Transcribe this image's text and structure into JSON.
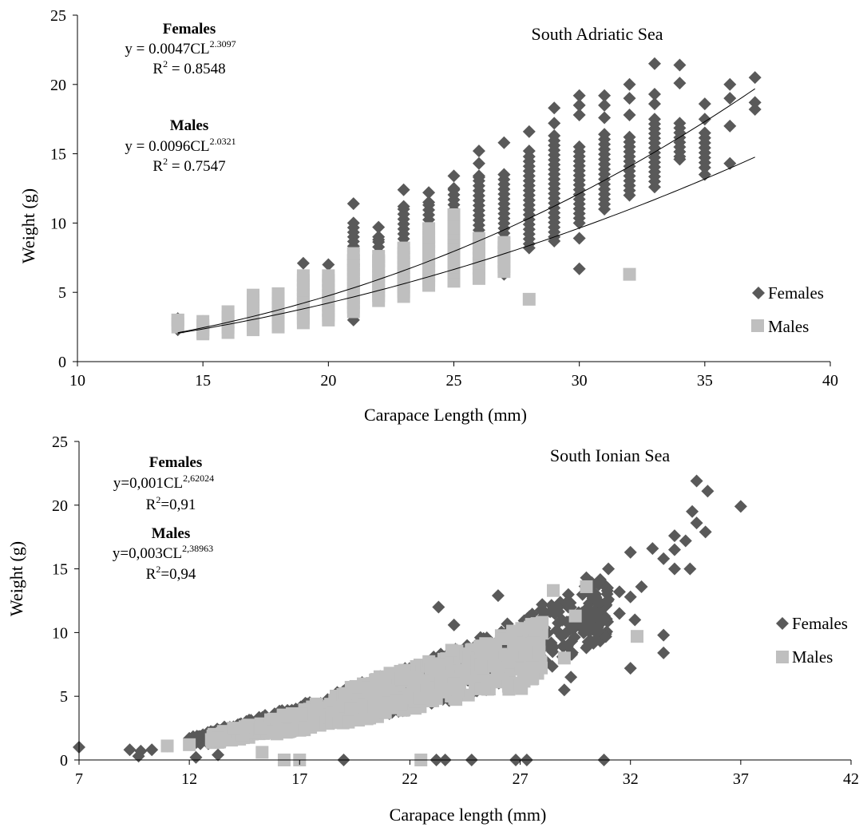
{
  "colors": {
    "females": "#595959",
    "males": "#bfbfbf",
    "axis": "#000000"
  },
  "chart_data": [
    {
      "type": "scatter",
      "title": "South Adriatic Sea",
      "xlabel": "Carapace Length (mm)",
      "ylabel": "Weight (g)",
      "xlim": [
        10,
        40
      ],
      "ylim": [
        0,
        25
      ],
      "xticks": [
        "10",
        "15",
        "20",
        "25",
        "30",
        "35",
        "40"
      ],
      "yticks": [
        "0",
        "5",
        "10",
        "15",
        "20",
        "25"
      ],
      "legend": [
        "Females",
        "Males"
      ],
      "legend_position": "right",
      "equations": {
        "females": {
          "label": "Females",
          "base": "y = 0.0047CL",
          "exp": "2.3097",
          "r2_label": "R",
          "r2_value": " = 0.8548"
        },
        "males": {
          "label": "Males",
          "base": "y = 0.0096CL",
          "exp": "2.0321",
          "r2_label": "R",
          "r2_value": " = 0.7547"
        }
      },
      "fits": [
        {
          "name": "Females",
          "a": 0.0047,
          "b": 2.3097,
          "x_range": [
            14,
            37
          ]
        },
        {
          "name": "Males",
          "a": 0.0096,
          "b": 2.0321,
          "x_range": [
            14,
            37
          ]
        }
      ],
      "series": [
        {
          "name": "Females",
          "marker": "diamond",
          "points": [
            [
              14,
              2.3
            ],
            [
              14,
              3.1
            ],
            [
              15,
              2.9
            ],
            [
              19,
              7.1
            ],
            [
              20,
              7.0
            ],
            [
              21,
              11.4
            ],
            [
              21,
              3.0
            ],
            [
              22,
              9.7
            ],
            [
              22,
              8.8
            ],
            [
              23,
              12.4
            ],
            [
              23,
              11.2
            ],
            [
              24,
              12.2
            ],
            [
              24,
              11.5
            ],
            [
              25,
              13.4
            ],
            [
              25,
              12.5
            ],
            [
              26,
              15.2
            ],
            [
              26,
              14.3
            ],
            [
              26,
              13.3
            ],
            [
              27,
              15.8
            ],
            [
              27,
              13.5
            ],
            [
              27,
              6.3
            ],
            [
              28,
              16.6
            ],
            [
              28,
              15.2
            ],
            [
              28,
              8.2
            ],
            [
              29,
              18.3
            ],
            [
              29,
              17.2
            ],
            [
              29,
              8.7
            ],
            [
              30,
              19.2
            ],
            [
              30,
              18.5
            ],
            [
              30,
              17.8
            ],
            [
              30,
              8.9
            ],
            [
              30,
              6.7
            ],
            [
              31,
              19.2
            ],
            [
              31,
              18.5
            ],
            [
              31,
              17.6
            ],
            [
              32,
              20.0
            ],
            [
              32,
              19.0
            ],
            [
              32,
              17.8
            ],
            [
              33,
              21.5
            ],
            [
              33,
              19.3
            ],
            [
              33,
              18.6
            ],
            [
              33,
              12.6
            ],
            [
              34,
              21.4
            ],
            [
              34,
              20.1
            ],
            [
              34,
              14.6
            ],
            [
              35,
              18.6
            ],
            [
              35,
              17.5
            ],
            [
              35,
              13.5
            ],
            [
              36,
              20.0
            ],
            [
              36,
              19.0
            ],
            [
              36,
              17.0
            ],
            [
              36,
              14.3
            ],
            [
              37,
              20.5
            ],
            [
              37,
              18.7
            ],
            [
              37,
              18.2
            ]
          ],
          "columns": [
            [
              21,
              7.0,
              10.0
            ],
            [
              22,
              5.0,
              9.0
            ],
            [
              23,
              6.0,
              11.0
            ],
            [
              24,
              6.0,
              11.3
            ],
            [
              25,
              7.0,
              12.4
            ],
            [
              26,
              7.0,
              13.4
            ],
            [
              27,
              7.5,
              13.5
            ],
            [
              28,
              8.5,
              14.8
            ],
            [
              29,
              9.0,
              16.3
            ],
            [
              30,
              10.0,
              15.5
            ],
            [
              31,
              11.0,
              16.4
            ],
            [
              32,
              12.0,
              16.2
            ],
            [
              33,
              13.0,
              17.5
            ],
            [
              34,
              14.8,
              17.2
            ],
            [
              35,
              14.0,
              16.5
            ]
          ]
        },
        {
          "name": "Males",
          "marker": "square",
          "points": [
            [
              14,
              3.0
            ],
            [
              15,
              2.1
            ],
            [
              21,
              7.8
            ],
            [
              22,
              7.3
            ],
            [
              24,
              9.6
            ],
            [
              25,
              10.6
            ],
            [
              28,
              4.5
            ],
            [
              32,
              6.3
            ]
          ],
          "columns": [
            [
              14,
              2.5,
              3.0
            ],
            [
              15,
              2.0,
              2.9
            ],
            [
              16,
              2.1,
              3.6
            ],
            [
              17,
              2.3,
              4.8
            ],
            [
              18,
              2.5,
              4.9
            ],
            [
              19,
              2.8,
              6.2
            ],
            [
              20,
              3.0,
              6.2
            ],
            [
              21,
              3.6,
              7.3
            ],
            [
              22,
              4.4,
              7.6
            ],
            [
              23,
              4.7,
              8.2
            ],
            [
              24,
              5.5,
              9.0
            ],
            [
              25,
              5.8,
              10.0
            ],
            [
              26,
              6.0,
              8.9
            ],
            [
              27,
              6.5,
              8.6
            ]
          ]
        }
      ]
    },
    {
      "type": "scatter",
      "title": "South Ionian Sea",
      "xlabel": "Carapace length (mm)",
      "ylabel": "Weight (g)",
      "xlim": [
        7,
        42
      ],
      "ylim": [
        0,
        25
      ],
      "xticks": [
        "7",
        "12",
        "17",
        "22",
        "27",
        "32",
        "37",
        "42"
      ],
      "yticks": [
        "0",
        "5",
        "10",
        "15",
        "20",
        "25"
      ],
      "legend": [
        "Females",
        "Males"
      ],
      "legend_position": "right",
      "equations": {
        "females": {
          "label": "Females",
          "base": "y=0,001CL",
          "exp": "2,62024",
          "r2_label": "R",
          "r2_value": "=0,91"
        },
        "males": {
          "label": "Males",
          "base": "y=0,003CL",
          "exp": "2,38963",
          "r2_label": "R",
          "r2_value": "=0,94"
        }
      },
      "series": [
        {
          "name": "Females",
          "marker": "diamond",
          "points": [
            [
              7,
              1.0
            ],
            [
              9.3,
              0.8
            ],
            [
              9.8,
              0.7
            ],
            [
              10.3,
              0.8
            ],
            [
              11,
              1.1
            ],
            [
              12,
              1.7
            ],
            [
              13,
              2.1
            ],
            [
              14,
              2.6
            ],
            [
              16.3,
              0
            ],
            [
              19,
              0
            ],
            [
              23.2,
              0
            ],
            [
              23.6,
              0
            ],
            [
              24.8,
              0
            ],
            [
              26.8,
              0
            ],
            [
              27.3,
              0
            ],
            [
              30.8,
              0
            ],
            [
              9.7,
              0.3
            ],
            [
              12.3,
              0.2
            ],
            [
              13.3,
              0.4
            ],
            [
              23.3,
              12.0
            ],
            [
              24,
              10.6
            ],
            [
              26,
              12.9
            ],
            [
              28,
              12.2
            ],
            [
              29,
              5.5
            ],
            [
              29.3,
              6.5
            ],
            [
              30,
              8.8
            ],
            [
              31,
              15.0
            ],
            [
              32,
              16.3
            ],
            [
              32.2,
              11.0
            ],
            [
              32,
              7.2
            ],
            [
              32.5,
              13.6
            ],
            [
              33,
              16.6
            ],
            [
              33.5,
              15.8
            ],
            [
              33.5,
              9.8
            ],
            [
              33.5,
              8.4
            ],
            [
              34,
              17.6
            ],
            [
              34,
              15.0
            ],
            [
              34.5,
              17.2
            ],
            [
              34.7,
              15.0
            ],
            [
              34,
              16.5
            ],
            [
              34.8,
              19.5
            ],
            [
              35,
              21.9
            ],
            [
              35.5,
              21.1
            ],
            [
              35.4,
              17.9
            ],
            [
              35,
              18.6
            ],
            [
              37,
              19.9
            ],
            [
              30,
              14.3
            ],
            [
              31.5,
              13.2
            ],
            [
              31,
              12.6
            ],
            [
              30.5,
              11.2
            ],
            [
              32,
              12.8
            ],
            [
              31.5,
              11.5
            ]
          ],
          "band": [
            [
              12,
              1.0,
              1.8
            ],
            [
              14,
              1.6,
              2.8
            ],
            [
              16,
              2.2,
              3.8
            ],
            [
              18,
              2.8,
              4.9
            ],
            [
              20,
              3.3,
              6.3
            ],
            [
              22,
              3.9,
              7.3
            ],
            [
              24,
              4.7,
              9.0
            ],
            [
              26,
              5.8,
              10.5
            ],
            [
              28,
              7.0,
              12.0
            ],
            [
              30,
              8.5,
              14.0
            ],
            [
              31,
              9.8,
              14.5
            ]
          ]
        },
        {
          "name": "Males",
          "marker": "square",
          "points": [
            [
              11,
              1.1
            ],
            [
              12,
              1.2
            ],
            [
              13,
              1.6
            ],
            [
              14,
              2.5
            ],
            [
              15.3,
              0.6
            ],
            [
              16.3,
              0
            ],
            [
              17,
              0
            ],
            [
              22.5,
              0
            ],
            [
              28.5,
              13.3
            ],
            [
              30,
              13.6
            ],
            [
              29.5,
              11.3
            ],
            [
              32.3,
              9.7
            ],
            [
              29,
              8.0
            ],
            [
              28,
              10.8
            ]
          ],
          "band": [
            [
              13,
              1.3,
              2.0
            ],
            [
              15,
              1.8,
              2.9
            ],
            [
              17,
              2.3,
              4.0
            ],
            [
              19,
              2.9,
              5.5
            ],
            [
              21,
              3.5,
              6.8
            ],
            [
              23,
              4.3,
              8.0
            ],
            [
              25,
              5.0,
              9.4
            ],
            [
              27,
              5.5,
              10.5
            ],
            [
              28,
              7.0,
              10.8
            ]
          ]
        }
      ]
    }
  ]
}
